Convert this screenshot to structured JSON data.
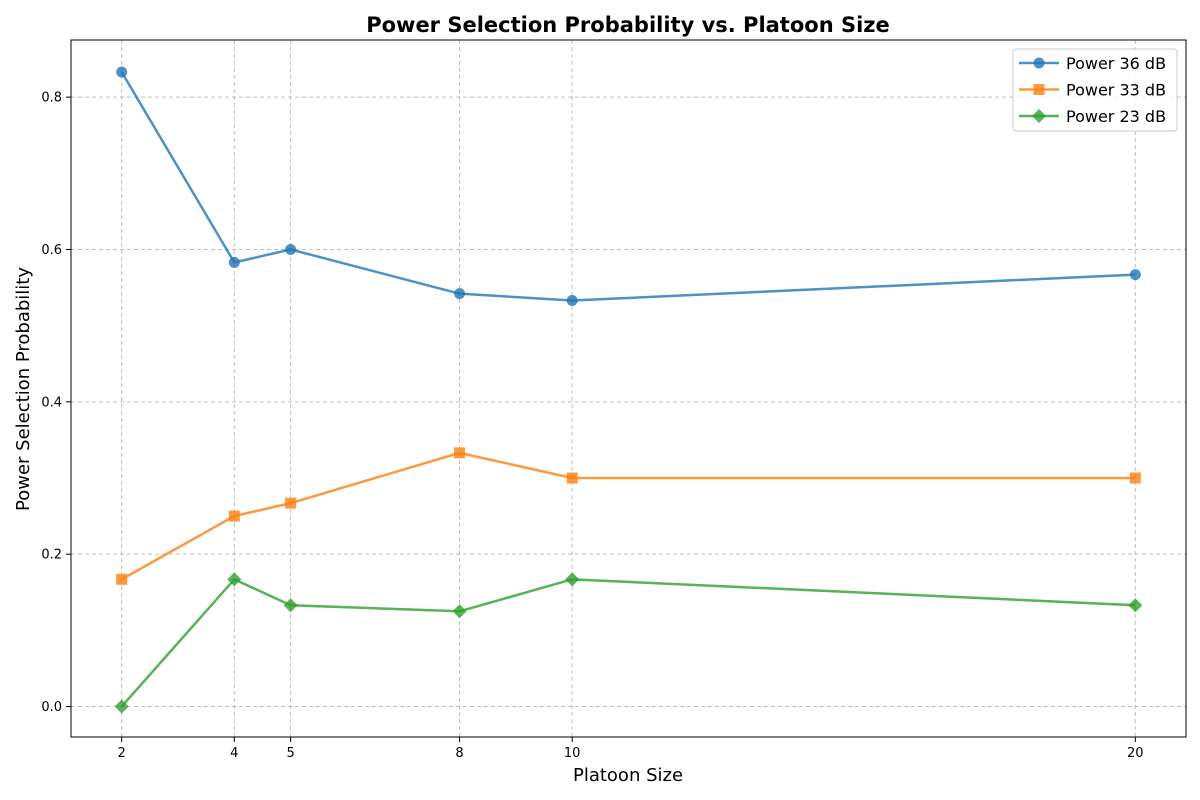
{
  "chart_data": {
    "type": "line",
    "title": "Power Selection Probability vs. Platoon Size",
    "xlabel": "Platoon Size",
    "ylabel": "Power Selection Probability",
    "x": [
      2,
      4,
      5,
      8,
      10,
      20
    ],
    "x_ticks": [
      "2",
      "4",
      "5",
      "8",
      "10",
      "20"
    ],
    "y_ticks": [
      "0.0",
      "0.2",
      "0.4",
      "0.6",
      "0.8"
    ],
    "xlim": [
      1.1,
      20.9
    ],
    "ylim": [
      -0.04,
      0.875
    ],
    "grid": true,
    "legend_position": "top-right",
    "series": [
      {
        "name": "Power 36 dB",
        "color": "#1f77b4",
        "marker": "circle",
        "values": [
          0.833,
          0.583,
          0.6,
          0.542,
          0.533,
          0.567
        ]
      },
      {
        "name": "Power 33 dB",
        "color": "#ff7f0e",
        "marker": "square",
        "values": [
          0.167,
          0.25,
          0.267,
          0.333,
          0.3,
          0.3
        ]
      },
      {
        "name": "Power 23 dB",
        "color": "#2ca02c",
        "marker": "diamond",
        "values": [
          0.0,
          0.167,
          0.133,
          0.125,
          0.167,
          0.133
        ]
      }
    ]
  }
}
